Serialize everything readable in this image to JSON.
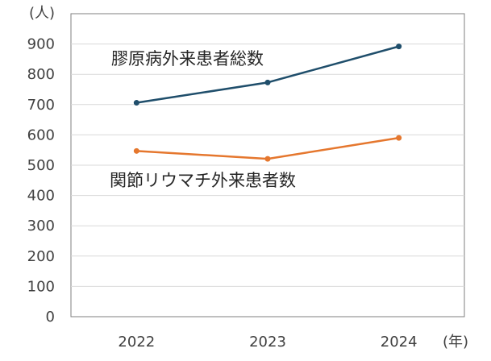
{
  "chart_data": {
    "type": "line",
    "categories": [
      "2022",
      "2023",
      "2024"
    ],
    "series": [
      {
        "name": "膠原病外来患者総数",
        "values": [
          706,
          773,
          892
        ],
        "color": "#1f4e6b"
      },
      {
        "name": "関節リウマチ外来患者数",
        "values": [
          547,
          521,
          590
        ],
        "color": "#e5772e"
      }
    ],
    "ylim": [
      0,
      1000
    ],
    "yticks": [
      0,
      100,
      200,
      300,
      400,
      500,
      600,
      700,
      800,
      900
    ],
    "y_unit": "(人)",
    "x_unit": "(年)",
    "grid": true,
    "markers": true
  }
}
